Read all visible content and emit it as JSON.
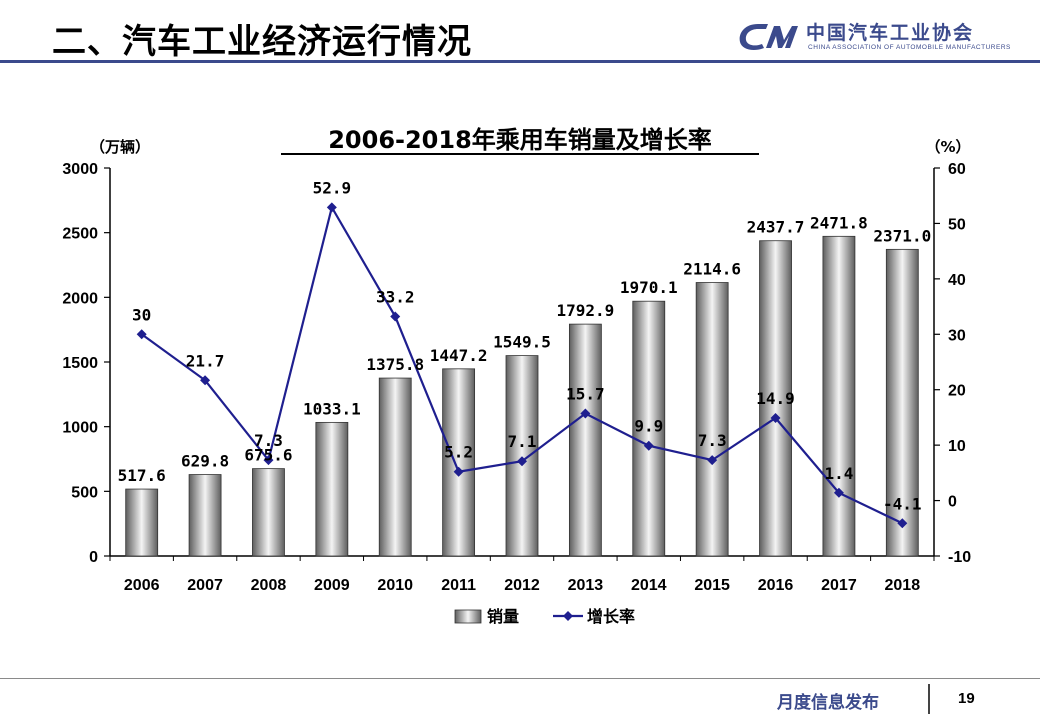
{
  "header": {
    "title": "二、汽车工业经济运行情况"
  },
  "logo": {
    "cn": "中国汽车工业协会",
    "en": "CHINA ASSOCIATION OF AUTOMOBILE MANUFACTURERS"
  },
  "footer": {
    "text": "月度信息发布",
    "page": "19"
  },
  "colors": {
    "accent": "#3b4a8c",
    "line": "#1f1f8f"
  },
  "chart_data": {
    "type": "bar",
    "title": "2006-2018年乘用车销量及增长率",
    "ylabel": "（万辆）",
    "y2label": "（%）",
    "ylim": [
      0,
      3000
    ],
    "y2lim": [
      -10,
      60
    ],
    "yticks": [
      0,
      500,
      1000,
      1500,
      2000,
      2500,
      3000
    ],
    "y2ticks": [
      -10,
      0,
      10,
      20,
      30,
      40,
      50,
      60
    ],
    "categories": [
      "2006",
      "2007",
      "2008",
      "2009",
      "2010",
      "2011",
      "2012",
      "2013",
      "2014",
      "2015",
      "2016",
      "2017",
      "2018"
    ],
    "series": [
      {
        "name": "销量",
        "type": "bar",
        "axis": "left",
        "values": [
          517.6,
          629.8,
          675.6,
          1033.1,
          1375.8,
          1447.2,
          1549.5,
          1792.9,
          1970.1,
          2114.6,
          2437.7,
          2471.8,
          2371.0
        ],
        "labels": [
          "517.6",
          "629.8",
          "675.6",
          "1033.1",
          "1375.8",
          "1447.2",
          "1549.5",
          "1792.9",
          "1970.1",
          "2114.6",
          "2437.7",
          "2471.8",
          "2371.0"
        ]
      },
      {
        "name": "增长率",
        "type": "line",
        "axis": "right",
        "values": [
          30,
          21.7,
          7.3,
          52.9,
          33.2,
          5.2,
          7.1,
          15.7,
          9.9,
          7.3,
          14.9,
          1.4,
          -4.1
        ],
        "labels": [
          "30",
          "21.7",
          "7.3",
          "52.9",
          "33.2",
          "5.2",
          "7.1",
          "15.7",
          "9.9",
          "7.3",
          "14.9",
          "1.4",
          "-4.1"
        ]
      }
    ],
    "grid": false,
    "legend": "bottom"
  }
}
